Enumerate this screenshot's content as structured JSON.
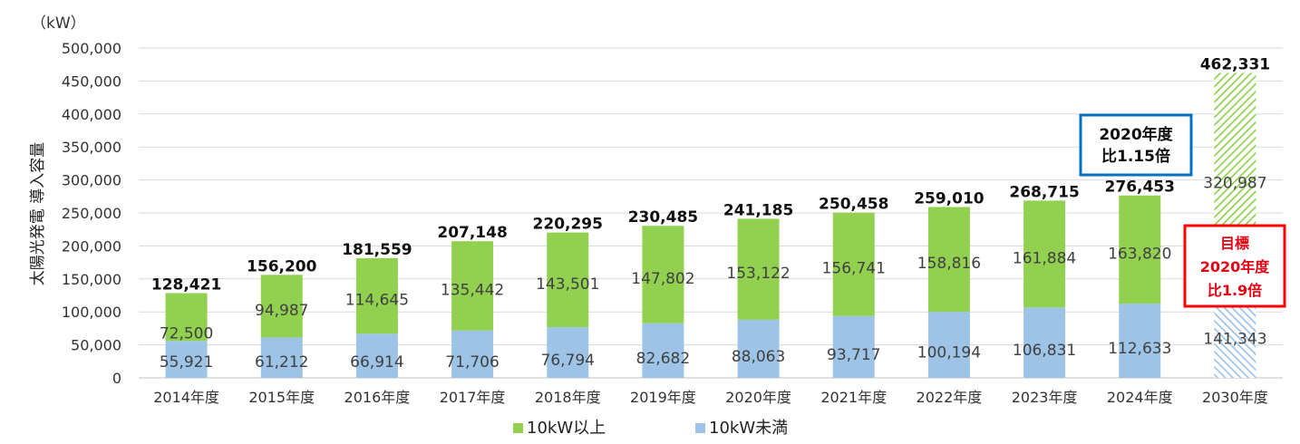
{
  "chart_data": {
    "type": "bar",
    "stacked": true,
    "unit_label": "（kW）",
    "ylabel": "太陽光発電 導入容量",
    "ylim": [
      0,
      500000
    ],
    "yticks": [
      0,
      50000,
      100000,
      150000,
      200000,
      250000,
      300000,
      350000,
      400000,
      450000,
      500000
    ],
    "ytick_labels": [
      "0",
      "50,000",
      "100,000",
      "150,000",
      "200,000",
      "250,000",
      "300,000",
      "350,000",
      "400,000",
      "450,000",
      "500,000"
    ],
    "grid": true,
    "categories": [
      "2014年度",
      "2015年度",
      "2016年度",
      "2017年度",
      "2018年度",
      "2019年度",
      "2020年度",
      "2021年度",
      "2022年度",
      "2023年度",
      "2024年度",
      "2030年度"
    ],
    "series": [
      {
        "name": "10kW未満",
        "color": "#9dc3e6",
        "values": [
          55921,
          61212,
          66914,
          71706,
          76794,
          82682,
          88063,
          93717,
          100194,
          106831,
          112633,
          141343
        ],
        "labels": [
          "55,921",
          "61,212",
          "66,914",
          "71,706",
          "76,794",
          "82,682",
          "88,063",
          "93,717",
          "100,194",
          "106,831",
          "112,633",
          "141,343"
        ]
      },
      {
        "name": "10kW以上",
        "color": "#92d050",
        "values": [
          72500,
          94987,
          114645,
          135442,
          143501,
          147802,
          153122,
          156741,
          158816,
          161884,
          163820,
          320987
        ],
        "labels": [
          "72,500",
          "94,987",
          "114,645",
          "135,442",
          "143,501",
          "147,802",
          "153,122",
          "156,741",
          "158,816",
          "161,884",
          "163,820",
          "320,987"
        ]
      }
    ],
    "totals": [
      128421,
      156200,
      181559,
      207148,
      220295,
      230485,
      241185,
      250458,
      259010,
      268715,
      276453,
      462331
    ],
    "total_labels": [
      "128,421",
      "156,200",
      "181,559",
      "207,148",
      "220,295",
      "230,485",
      "241,185",
      "250,458",
      "259,010",
      "268,715",
      "276,453",
      "462,331"
    ],
    "hatched_category_index": 11,
    "legend": {
      "placement": "bottom",
      "items": [
        {
          "label": "10kW以上",
          "color": "#92d050"
        },
        {
          "label": "10kW未満",
          "color": "#9dc3e6"
        }
      ]
    },
    "annotations": {
      "blue_box": {
        "lines": [
          "2020年度",
          "比1.15倍"
        ],
        "color": "#0070c0"
      },
      "red_box": {
        "lines": [
          "目標",
          "2020年度",
          "比1.9倍"
        ],
        "color": "#ff0000"
      }
    }
  }
}
